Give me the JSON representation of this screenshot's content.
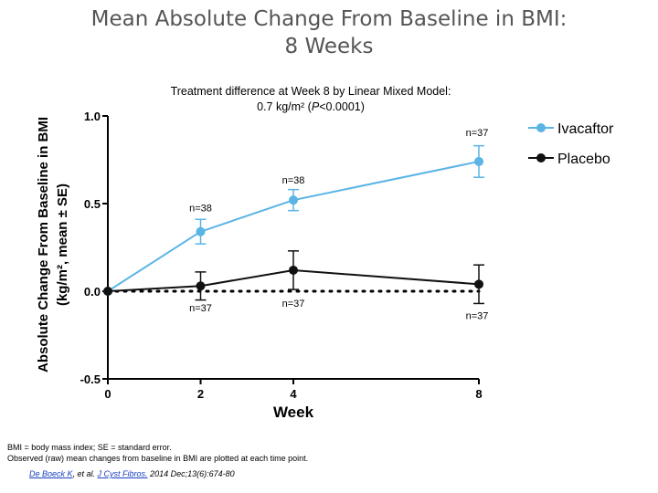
{
  "title_line1": "Mean Absolute Change From Baseline in BMI:",
  "title_line2": "8 Weeks",
  "subtitle_line1": "Treatment difference at Week 8 by Linear Mixed Model:",
  "subtitle_line2_pre": "0.7 kg/m² (",
  "subtitle_line2_p": "P",
  "subtitle_line2_post": "<0.0001)",
  "footer_line1": "BMI = body mass index; SE = standard error.",
  "footer_line2": "Observed (raw) mean changes from baseline in BMI are plotted at each time point.",
  "citation_author": "De Boeck K",
  "citation_mid": ", et al. ",
  "citation_journal": "J Cyst Fibros.",
  "citation_rest": " 2014 Dec;13(6):674-80",
  "colors": {
    "ivacaftor": "#5ab4e5",
    "placebo": "#111111"
  },
  "chart_data": {
    "type": "line",
    "xlabel": "Week",
    "ylabel_line1": "Absolute Change From Baseline in BMI",
    "ylabel_line2": "(kg/m², mean ± SE)",
    "xlim": [
      0,
      8
    ],
    "ylim": [
      -0.5,
      1.0
    ],
    "x_ticks": [
      0,
      2,
      4,
      8
    ],
    "x_tick_labels": [
      "0",
      "2",
      "4",
      "8"
    ],
    "y_ticks": [
      -0.5,
      0,
      0.5,
      1.0
    ],
    "y_tick_labels": [
      "-0.5",
      "0.0",
      "0.5",
      "1.0"
    ],
    "grid": false,
    "reference_line": 0,
    "legend_position": "top-right",
    "series": [
      {
        "name": "Ivacaftor",
        "color": "#5ab4e5",
        "x": [
          0,
          2,
          4,
          8
        ],
        "y": [
          0.0,
          0.34,
          0.52,
          0.74
        ],
        "se": [
          0.0,
          0.07,
          0.06,
          0.09
        ],
        "n_labels": [
          "",
          "n=38",
          "n=38",
          "n=37"
        ]
      },
      {
        "name": "Placebo",
        "color": "#111111",
        "x": [
          0,
          2,
          4,
          8
        ],
        "y": [
          0.0,
          0.03,
          0.12,
          0.04
        ],
        "se": [
          0.0,
          0.08,
          0.11,
          0.11
        ],
        "n_labels": [
          "",
          "n=37",
          "n=37",
          "n=37"
        ]
      }
    ]
  }
}
